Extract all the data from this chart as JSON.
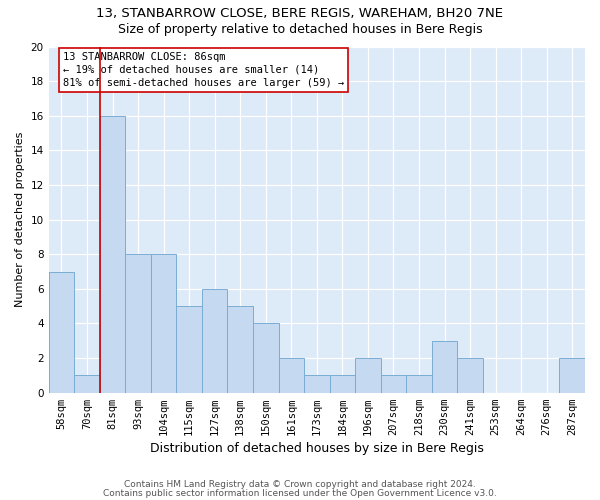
{
  "title1": "13, STANBARROW CLOSE, BERE REGIS, WAREHAM, BH20 7NE",
  "title2": "Size of property relative to detached houses in Bere Regis",
  "xlabel": "Distribution of detached houses by size in Bere Regis",
  "ylabel": "Number of detached properties",
  "bin_labels": [
    "58sqm",
    "70sqm",
    "81sqm",
    "93sqm",
    "104sqm",
    "115sqm",
    "127sqm",
    "138sqm",
    "150sqm",
    "161sqm",
    "173sqm",
    "184sqm",
    "196sqm",
    "207sqm",
    "218sqm",
    "230sqm",
    "241sqm",
    "253sqm",
    "264sqm",
    "276sqm",
    "287sqm"
  ],
  "bar_values": [
    7,
    1,
    16,
    8,
    8,
    5,
    6,
    5,
    4,
    2,
    1,
    1,
    2,
    1,
    1,
    3,
    2,
    0,
    0,
    0,
    2
  ],
  "bar_color": "#c5d9f0",
  "bar_edge_color": "#7aadd4",
  "subject_bin_index": 2,
  "subject_line_color": "#cc0000",
  "annotation_line1": "13 STANBARROW CLOSE: 86sqm",
  "annotation_line2": "← 19% of detached houses are smaller (14)",
  "annotation_line3": "81% of semi-detached houses are larger (59) →",
  "annotation_box_edgecolor": "#cc0000",
  "ylim_max": 20,
  "yticks": [
    0,
    2,
    4,
    6,
    8,
    10,
    12,
    14,
    16,
    18,
    20
  ],
  "footer1": "Contains HM Land Registry data © Crown copyright and database right 2024.",
  "footer2": "Contains public sector information licensed under the Open Government Licence v3.0.",
  "fig_bg_color": "#ffffff",
  "axes_bg_color": "#ddeaf8",
  "grid_color": "#ffffff",
  "title1_fontsize": 9.5,
  "title2_fontsize": 9,
  "xlabel_fontsize": 9,
  "ylabel_fontsize": 8,
  "tick_fontsize": 7.5,
  "annotation_fontsize": 7.5,
  "footer_fontsize": 6.5
}
